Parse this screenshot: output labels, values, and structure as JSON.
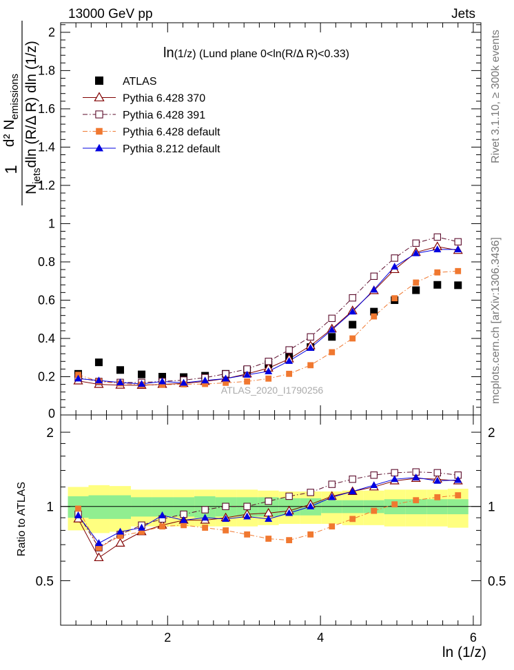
{
  "header": {
    "left": "13000 GeV pp",
    "right": "Jets"
  },
  "side_labels": {
    "events": "Rivet 3.1.10, ≥ 300k events",
    "source": "mcplots.cern.ch [arXiv:1306.3436]"
  },
  "watermark": "ATLAS_2020_I1790256",
  "chart_data": [
    {
      "type": "scatter",
      "title": "ln(1/z) (Lund plane 0<ln(R/Δ R)<0.33)",
      "title_main": "ln",
      "title_rest": "(1/z) (Lund plane 0<ln(R/Δ R)<0.33)",
      "ylabel": {
        "lead": "1",
        "denominator": "N",
        "jets_sub": "jets",
        "denominator_rest": "dln (R/Δ R) dln (1/z)",
        "numerator": "d² N",
        "emissions_sub": "emissions"
      },
      "xlabel": "ln (1/z)",
      "xlim": [
        0.6,
        6.1
      ],
      "ylim": [
        0,
        2.05
      ],
      "y_ticks": [
        "0.2",
        "0.4",
        "0.6",
        "0.8",
        "1",
        "1.2",
        "1.4",
        "1.6",
        "1.8",
        "2"
      ],
      "y_tick_values": [
        0.2,
        0.4,
        0.6,
        0.8,
        1.0,
        1.2,
        1.4,
        1.6,
        1.8,
        2.0
      ],
      "y_zero_label": "0",
      "legend_position": "top-left",
      "x": [
        0.83,
        1.1,
        1.38,
        1.66,
        1.93,
        2.21,
        2.49,
        2.76,
        3.04,
        3.32,
        3.59,
        3.87,
        4.15,
        4.42,
        4.7,
        4.97,
        5.25,
        5.53,
        5.8
      ],
      "series": [
        {
          "name": "ATLAS",
          "color": "#000000",
          "marker": "filled-square",
          "line": "none",
          "values": [
            0.215,
            0.275,
            0.235,
            0.212,
            0.2,
            0.198,
            0.205,
            0.215,
            0.235,
            0.265,
            0.305,
            0.355,
            0.408,
            0.472,
            0.54,
            0.6,
            0.652,
            0.68,
            0.678
          ]
        },
        {
          "name": "Pythia 6.428 370",
          "color": "#800000",
          "marker": "open-triangle",
          "line": "solid",
          "values": [
            0.178,
            0.16,
            0.156,
            0.155,
            0.16,
            0.165,
            0.175,
            0.19,
            0.215,
            0.245,
            0.293,
            0.362,
            0.45,
            0.545,
            0.65,
            0.76,
            0.85,
            0.88,
            0.86
          ]
        },
        {
          "name": "Pythia 6.428 391",
          "color": "#5a0a2a",
          "marker": "open-square",
          "line": "dashdot",
          "values": [
            0.195,
            0.175,
            0.17,
            0.17,
            0.175,
            0.182,
            0.195,
            0.215,
            0.24,
            0.28,
            0.34,
            0.408,
            0.505,
            0.612,
            0.725,
            0.82,
            0.898,
            0.93,
            0.905
          ]
        },
        {
          "name": "Pythia 6.428 default",
          "color": "#f07830",
          "marker": "filled-square-small",
          "line": "dashdot",
          "values": [
            0.21,
            0.175,
            0.165,
            0.158,
            0.158,
            0.16,
            0.162,
            0.168,
            0.175,
            0.19,
            0.215,
            0.26,
            0.328,
            0.4,
            0.515,
            0.61,
            0.692,
            0.745,
            0.752
          ]
        },
        {
          "name": "Pythia 8.212 default",
          "color": "#0000e0",
          "marker": "filled-triangle",
          "line": "solid",
          "values": [
            0.19,
            0.18,
            0.17,
            0.162,
            0.175,
            0.168,
            0.18,
            0.19,
            0.21,
            0.228,
            0.282,
            0.35,
            0.445,
            0.54,
            0.655,
            0.775,
            0.845,
            0.865,
            0.865
          ]
        }
      ]
    },
    {
      "type": "scatter",
      "ylabel": "Ratio to ATLAS",
      "xlabel": "ln (1/z)",
      "xlim": [
        0.6,
        6.1
      ],
      "ylim": [
        0.33,
        2.35
      ],
      "x_ticks": [
        "2",
        "4",
        "6"
      ],
      "x_tick_values": [
        2,
        4,
        6
      ],
      "y_ticks": [
        "0.5",
        "1",
        "2"
      ],
      "y_tick_values": [
        0.5,
        1,
        2
      ],
      "band_stat_half_width": [
        0.1,
        0.11,
        0.11,
        0.09,
        0.09,
        0.09,
        0.1,
        0.09,
        0.09,
        0.09,
        0.08,
        0.08,
        0.06,
        0.06,
        0.06,
        0.07,
        0.07,
        0.07,
        0.07
      ],
      "band_total_half_width": [
        0.2,
        0.22,
        0.21,
        0.17,
        0.17,
        0.17,
        0.17,
        0.17,
        0.17,
        0.16,
        0.15,
        0.15,
        0.15,
        0.16,
        0.16,
        0.17,
        0.17,
        0.17,
        0.18
      ],
      "series": [
        {
          "name": "Pythia 6.428 370",
          "values": [
            0.89,
            0.62,
            0.71,
            0.79,
            0.84,
            0.88,
            0.88,
            0.9,
            0.93,
            0.94,
            0.96,
            1.02,
            1.1,
            1.15,
            1.2,
            1.27,
            1.3,
            1.29,
            1.27
          ]
        },
        {
          "name": "Pythia 6.428 391",
          "values": [
            0.93,
            0.68,
            0.77,
            0.84,
            0.89,
            0.93,
            0.97,
            1.0,
            1.0,
            1.05,
            1.1,
            1.14,
            1.23,
            1.29,
            1.34,
            1.37,
            1.38,
            1.37,
            1.34
          ]
        },
        {
          "name": "Pythia 6.428 default",
          "values": [
            0.98,
            0.68,
            0.76,
            0.79,
            0.83,
            0.84,
            0.82,
            0.8,
            0.77,
            0.74,
            0.73,
            0.77,
            0.83,
            0.89,
            0.96,
            1.02,
            1.06,
            1.09,
            1.11
          ]
        },
        {
          "name": "Pythia 8.212 default",
          "values": [
            0.92,
            0.71,
            0.79,
            0.82,
            0.92,
            0.88,
            0.9,
            0.89,
            0.91,
            0.89,
            0.94,
            1.0,
            1.09,
            1.15,
            1.22,
            1.29,
            1.31,
            1.27,
            1.28
          ]
        }
      ]
    }
  ]
}
